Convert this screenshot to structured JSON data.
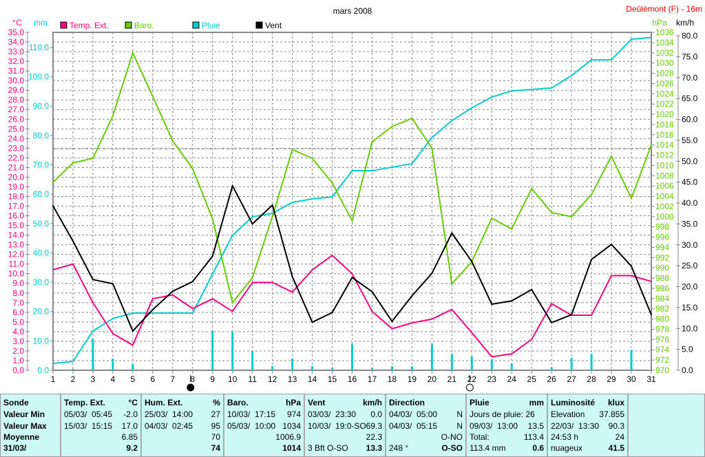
{
  "chart_data": {
    "type": "line",
    "title": "mars 2008",
    "station": "Deûlémont (F) - 16m",
    "x": [
      1,
      2,
      3,
      4,
      5,
      6,
      7,
      8,
      9,
      10,
      11,
      12,
      13,
      14,
      15,
      16,
      17,
      18,
      19,
      20,
      21,
      22,
      23,
      24,
      25,
      26,
      27,
      28,
      29,
      30,
      31
    ],
    "axes": {
      "temp": {
        "label": "°C",
        "range": [
          0,
          35
        ],
        "step": 1
      },
      "rain": {
        "label": "mm",
        "range": [
          0,
          110
        ],
        "step": 10
      },
      "baro": {
        "label": "hPa",
        "range": [
          970,
          1036
        ],
        "step": 2
      },
      "wind": {
        "label": "km/h",
        "range": [
          0,
          80
        ],
        "step": 5
      }
    },
    "series": [
      {
        "name": "Temp. Ext.",
        "axis": "temp",
        "color": "#ff0080",
        "values": [
          10.4,
          11.0,
          7.0,
          3.8,
          2.6,
          7.4,
          7.8,
          6.4,
          7.4,
          6.1,
          9.1,
          9.1,
          8.1,
          10.4,
          11.9,
          10.0,
          6.1,
          4.3,
          4.9,
          5.3,
          6.3,
          3.9,
          1.4,
          1.7,
          3.2,
          6.9,
          5.7,
          5.7,
          9.8,
          9.8,
          9.2
        ]
      },
      {
        "name": "Baro.",
        "axis": "baro",
        "color": "#66cc00",
        "values": [
          1006.7,
          1010.5,
          1011.4,
          1019.7,
          1032,
          1023.5,
          1014.8,
          1009.4,
          999.6,
          983.2,
          988.1,
          1000,
          1013.1,
          1011.4,
          1006.6,
          999.2,
          1014.6,
          1017.6,
          1019.2,
          1013.4,
          986.9,
          991.2,
          999.7,
          997.6,
          1005.5,
          1000.8,
          1000,
          1004.3,
          1011.8,
          1003.6,
          1014
        ]
      },
      {
        "name": "Pluie",
        "axis": "rain",
        "color": "#00cccc",
        "values": [
          2.3,
          3.0,
          13.4,
          17.6,
          19.5,
          19.5,
          19.5,
          19.5,
          32.8,
          46,
          52.3,
          53.5,
          57.2,
          58.4,
          59.1,
          68,
          68,
          69.2,
          70.4,
          79.3,
          85.1,
          89.4,
          93.1,
          95.2,
          95.7,
          96.2,
          100.4,
          105.8,
          105.8,
          112.8,
          113.4
        ],
        "daily": [
          0,
          0.5,
          10.8,
          4,
          2.1,
          0,
          0,
          0,
          13.5,
          13.1,
          6.5,
          1.4,
          4,
          1.4,
          0.7,
          9,
          0.7,
          1.4,
          1.4,
          9,
          5.6,
          4.7,
          3.7,
          2.3,
          0,
          1,
          4.2,
          5.6,
          0,
          7,
          0
        ]
      },
      {
        "name": "Vent",
        "axis": "wind",
        "color": "#000000",
        "values": [
          39.3,
          30.9,
          21.7,
          20.7,
          9.4,
          14.5,
          18.9,
          21.2,
          27.3,
          44.1,
          35.0,
          39.5,
          22.4,
          11.5,
          13.8,
          22.2,
          18.8,
          11.7,
          17.8,
          23.2,
          32.8,
          26.0,
          15.8,
          16.6,
          19.3,
          11.4,
          13.3,
          26.5,
          30.1,
          24.9,
          13.3
        ]
      }
    ],
    "reference_line_hpa": 1013.25,
    "moon": [
      {
        "day": 8,
        "phase": "new"
      },
      {
        "day": 22,
        "phase": "full"
      }
    ],
    "grid": true,
    "legend": "top"
  },
  "table": {
    "sonde": {
      "title": "Sonde",
      "rows": [
        "Valeur Min",
        "Valeur Max",
        "Moyenne",
        "31/03/"
      ]
    },
    "cols": [
      {
        "title": "Temp. Ext.",
        "unit": "°C",
        "rows": [
          [
            "05/03/  05:45",
            "-2.0"
          ],
          [
            "15/03/  15:15",
            "17.0"
          ],
          [
            "",
            "6.85"
          ],
          [
            "",
            "9.2"
          ]
        ]
      },
      {
        "title": "Hum. Ext.",
        "unit": "%",
        "rows": [
          [
            "25/03/  14:00",
            "27"
          ],
          [
            "04/03/  02:45",
            "95"
          ],
          [
            "",
            "70"
          ],
          [
            "",
            "74"
          ]
        ]
      },
      {
        "title": "Baro.",
        "unit": "hPa",
        "rows": [
          [
            "10/03/  17:15",
            "974"
          ],
          [
            "05/03/  10:00",
            "1034"
          ],
          [
            "",
            "1006.9"
          ],
          [
            "",
            "1014"
          ]
        ]
      },
      {
        "title": "Vent",
        "unit": "km/h",
        "rows": [
          [
            "03/03/  23:30",
            "0.0"
          ],
          [
            "10/03/  19:0-SO",
            "69.3"
          ],
          [
            "",
            "22.3"
          ],
          [
            "3 Bft O-SO",
            "13.3"
          ]
        ]
      },
      {
        "title": "Direction",
        "unit": "",
        "rows": [
          [
            "04/03/  05:00",
            "N"
          ],
          [
            "04/03/  05:15",
            "N"
          ],
          [
            "",
            "O-NO"
          ],
          [
            "248 °",
            "O-SO"
          ]
        ]
      },
      {
        "title": "Pluie",
        "unit": "mm",
        "rows": [
          [
            "Jours de pluie: 26",
            ""
          ],
          [
            "09/03/  13:00",
            "13.5"
          ],
          [
            "Total:",
            "113.4"
          ],
          [
            "113.4 mm",
            "0.6"
          ]
        ]
      },
      {
        "title": "Luminosité",
        "unit": "klux",
        "rows": [
          [
            "Elevation",
            "37.855"
          ],
          [
            "22/03/  13:30",
            "90.3"
          ],
          [
            "24:53 h",
            "24"
          ],
          [
            "nuageux",
            "41.5"
          ]
        ]
      }
    ]
  }
}
